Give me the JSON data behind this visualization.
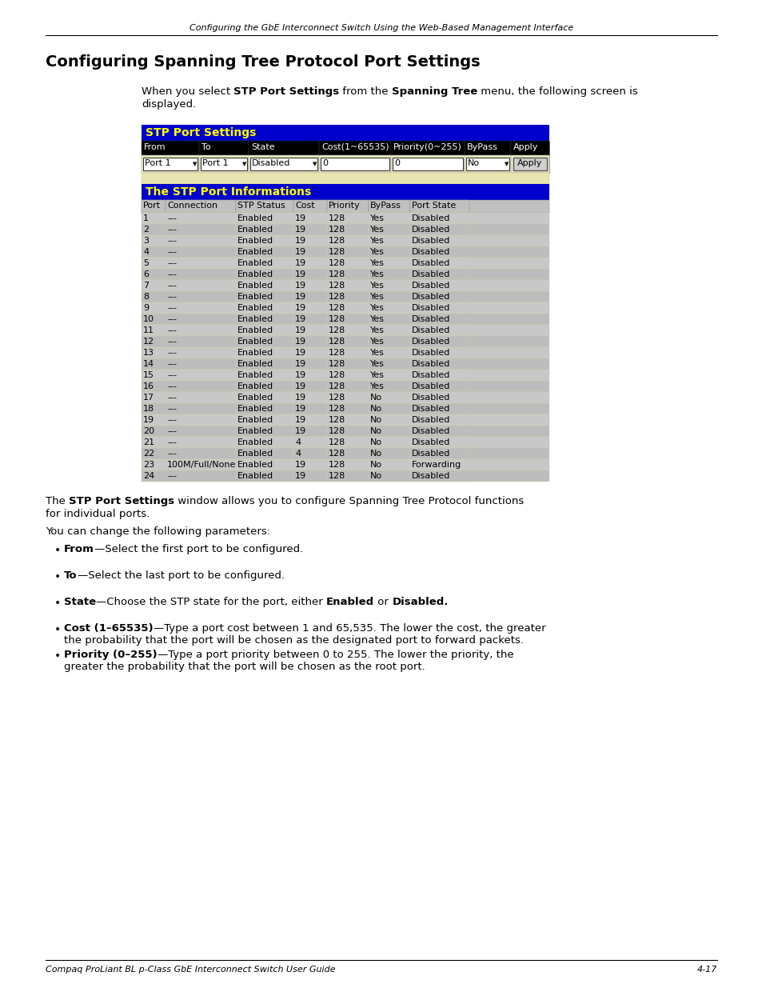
{
  "page_header": "Configuring the GbE Interconnect Switch Using the Web-Based Management Interface",
  "section_title": "Configuring Spanning Tree Protocol Port Settings",
  "stp_title": "STP Port Settings",
  "form_headers": [
    "From",
    "To",
    "State",
    "Cost(1~65535)",
    "Priority(0~255)",
    "ByPass",
    "Apply"
  ],
  "form_values": [
    "Port 1",
    "Port 1",
    "Disabled",
    "0",
    "0",
    "No",
    "Apply"
  ],
  "info_title": "The STP Port Informations",
  "table_headers": [
    "Port",
    "Connection",
    "STP Status",
    "Cost",
    "Priority",
    "ByPass",
    "Port State"
  ],
  "table_data": [
    [
      "1",
      "---",
      "Enabled",
      "19",
      "128",
      "Yes",
      "Disabled"
    ],
    [
      "2",
      "---",
      "Enabled",
      "19",
      "128",
      "Yes",
      "Disabled"
    ],
    [
      "3",
      "---",
      "Enabled",
      "19",
      "128",
      "Yes",
      "Disabled"
    ],
    [
      "4",
      "---",
      "Enabled",
      "19",
      "128",
      "Yes",
      "Disabled"
    ],
    [
      "5",
      "---",
      "Enabled",
      "19",
      "128",
      "Yes",
      "Disabled"
    ],
    [
      "6",
      "---",
      "Enabled",
      "19",
      "128",
      "Yes",
      "Disabled"
    ],
    [
      "7",
      "---",
      "Enabled",
      "19",
      "128",
      "Yes",
      "Disabled"
    ],
    [
      "8",
      "---",
      "Enabled",
      "19",
      "128",
      "Yes",
      "Disabled"
    ],
    [
      "9",
      "---",
      "Enabled",
      "19",
      "128",
      "Yes",
      "Disabled"
    ],
    [
      "10",
      "---",
      "Enabled",
      "19",
      "128",
      "Yes",
      "Disabled"
    ],
    [
      "11",
      "---",
      "Enabled",
      "19",
      "128",
      "Yes",
      "Disabled"
    ],
    [
      "12",
      "---",
      "Enabled",
      "19",
      "128",
      "Yes",
      "Disabled"
    ],
    [
      "13",
      "---",
      "Enabled",
      "19",
      "128",
      "Yes",
      "Disabled"
    ],
    [
      "14",
      "---",
      "Enabled",
      "19",
      "128",
      "Yes",
      "Disabled"
    ],
    [
      "15",
      "---",
      "Enabled",
      "19",
      "128",
      "Yes",
      "Disabled"
    ],
    [
      "16",
      "---",
      "Enabled",
      "19",
      "128",
      "Yes",
      "Disabled"
    ],
    [
      "17",
      "---",
      "Enabled",
      "19",
      "128",
      "No",
      "Disabled"
    ],
    [
      "18",
      "---",
      "Enabled",
      "19",
      "128",
      "No",
      "Disabled"
    ],
    [
      "19",
      "---",
      "Enabled",
      "19",
      "128",
      "No",
      "Disabled"
    ],
    [
      "20",
      "---",
      "Enabled",
      "19",
      "128",
      "No",
      "Disabled"
    ],
    [
      "21",
      "---",
      "Enabled",
      "4",
      "128",
      "No",
      "Disabled"
    ],
    [
      "22",
      "---",
      "Enabled",
      "4",
      "128",
      "No",
      "Disabled"
    ],
    [
      "23",
      "100M/Full/None",
      "Enabled",
      "19",
      "128",
      "No",
      "Forwarding"
    ],
    [
      "24",
      "---",
      "Enabled",
      "19",
      "128",
      "No",
      "Disabled"
    ]
  ],
  "footer_left": "Compaq ProLiant BL p-Class GbE Interconnect Switch User Guide",
  "footer_right": "4-17",
  "blue_header_bg": "#0000CC",
  "blue_header_fg": "#FFFF00",
  "table_header_bg": "#C0C0C0",
  "table_row_bg": "#C8C8C8",
  "table_row_alt": "#BCBCBC",
  "table_row_line": "#D0D0A8",
  "form_bg": "#E8E8C0",
  "widget_border": "#8888AA"
}
